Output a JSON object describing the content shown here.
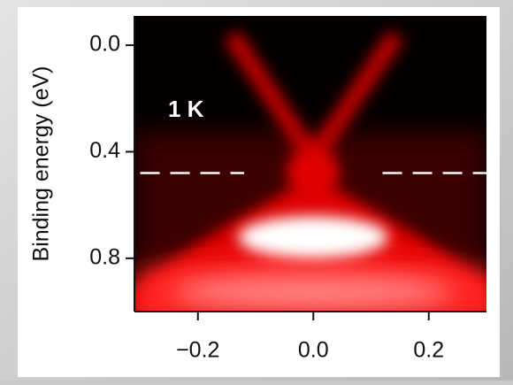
{
  "chart_data": {
    "type": "image",
    "annotation": "1 K",
    "y_label": "Binding energy (eV)",
    "xlim": [
      -0.31,
      0.3
    ],
    "ylim": [
      -0.11,
      1.0
    ],
    "y_inverted": true,
    "xticks": [
      {
        "value": -0.2,
        "label": "−0.2"
      },
      {
        "value": 0,
        "label": "0.0"
      },
      {
        "value": 0.2,
        "label": "0.2"
      }
    ],
    "yticks": [
      {
        "value": 0,
        "label": "0.0"
      },
      {
        "value": 0.4,
        "label": "0.4"
      },
      {
        "value": 0.8,
        "label": "0.8"
      }
    ],
    "dashed_line": {
      "y": 0.48,
      "x_ranges": [
        [
          -0.3,
          -0.12
        ],
        [
          0.12,
          0.3
        ]
      ],
      "color": "#ffffff"
    }
  }
}
